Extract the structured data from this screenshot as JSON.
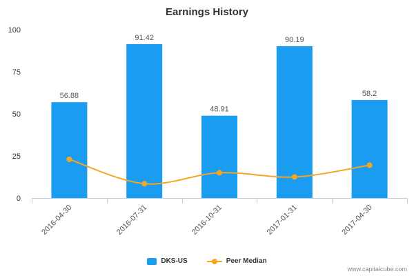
{
  "colors": {
    "bar": "#1a9cf0",
    "line": "#f5a623",
    "axis": "#c0d0e0",
    "text": "#333333"
  },
  "watermark": "www.capitalcube.com",
  "chart_data": {
    "type": "bar",
    "title": "Earnings History",
    "categories": [
      "2016-04-30",
      "2016-07-31",
      "2016-10-31",
      "2017-01-31",
      "2017-04-30"
    ],
    "ylim": [
      0,
      100
    ],
    "yticks": [
      "0",
      "25",
      "50",
      "75",
      "100"
    ],
    "grid": false,
    "legend_position": "bottom",
    "series": [
      {
        "name": "DKS-US",
        "type": "bar",
        "values": [
          56.88,
          91.42,
          48.91,
          90.19,
          58.2
        ],
        "labels": [
          "56.88",
          "91.42",
          "48.91",
          "90.19",
          "58.2"
        ]
      },
      {
        "name": "Peer Median",
        "type": "line",
        "values": [
          23,
          8.5,
          15,
          12.5,
          19.5
        ]
      }
    ]
  }
}
